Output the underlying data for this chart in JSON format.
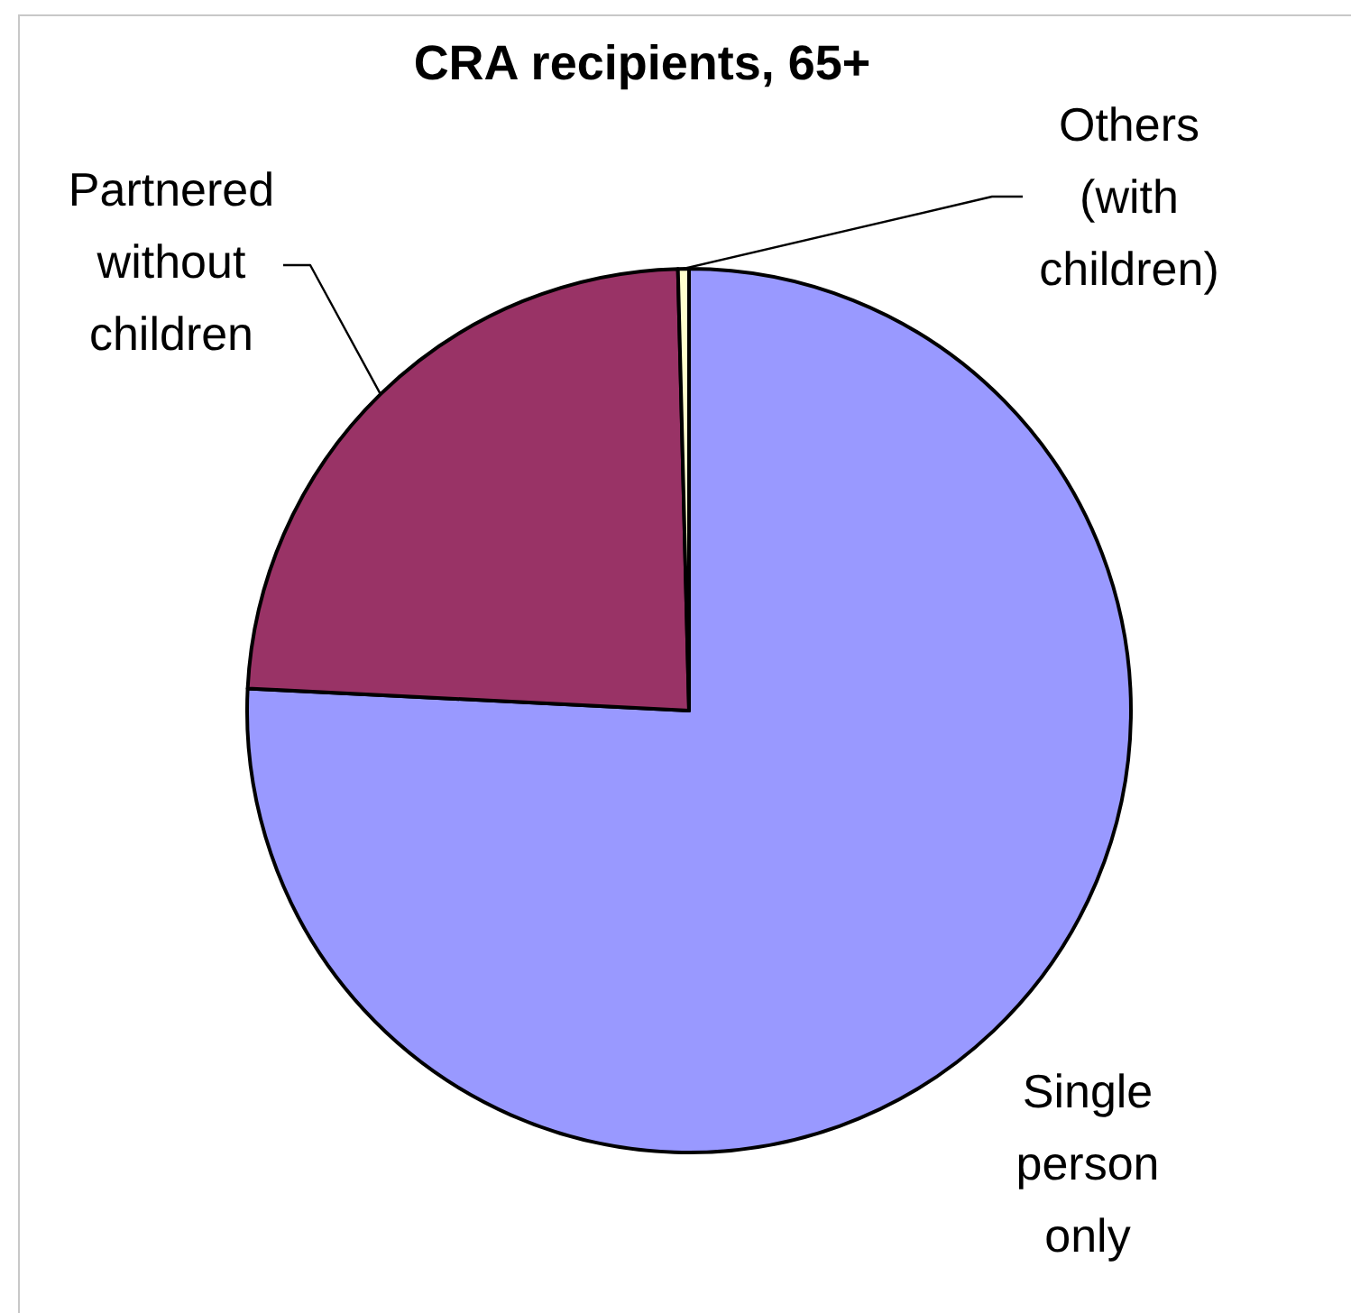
{
  "chart_data": {
    "type": "pie",
    "title": "CRA recipients, 65+",
    "categories": [
      "Single person only",
      "Partnered without children",
      "Others (with children)"
    ],
    "values": [
      75.8,
      23.8,
      0.4
    ],
    "colors": [
      "#9999ff",
      "#993366",
      "#ffffcc"
    ]
  }
}
